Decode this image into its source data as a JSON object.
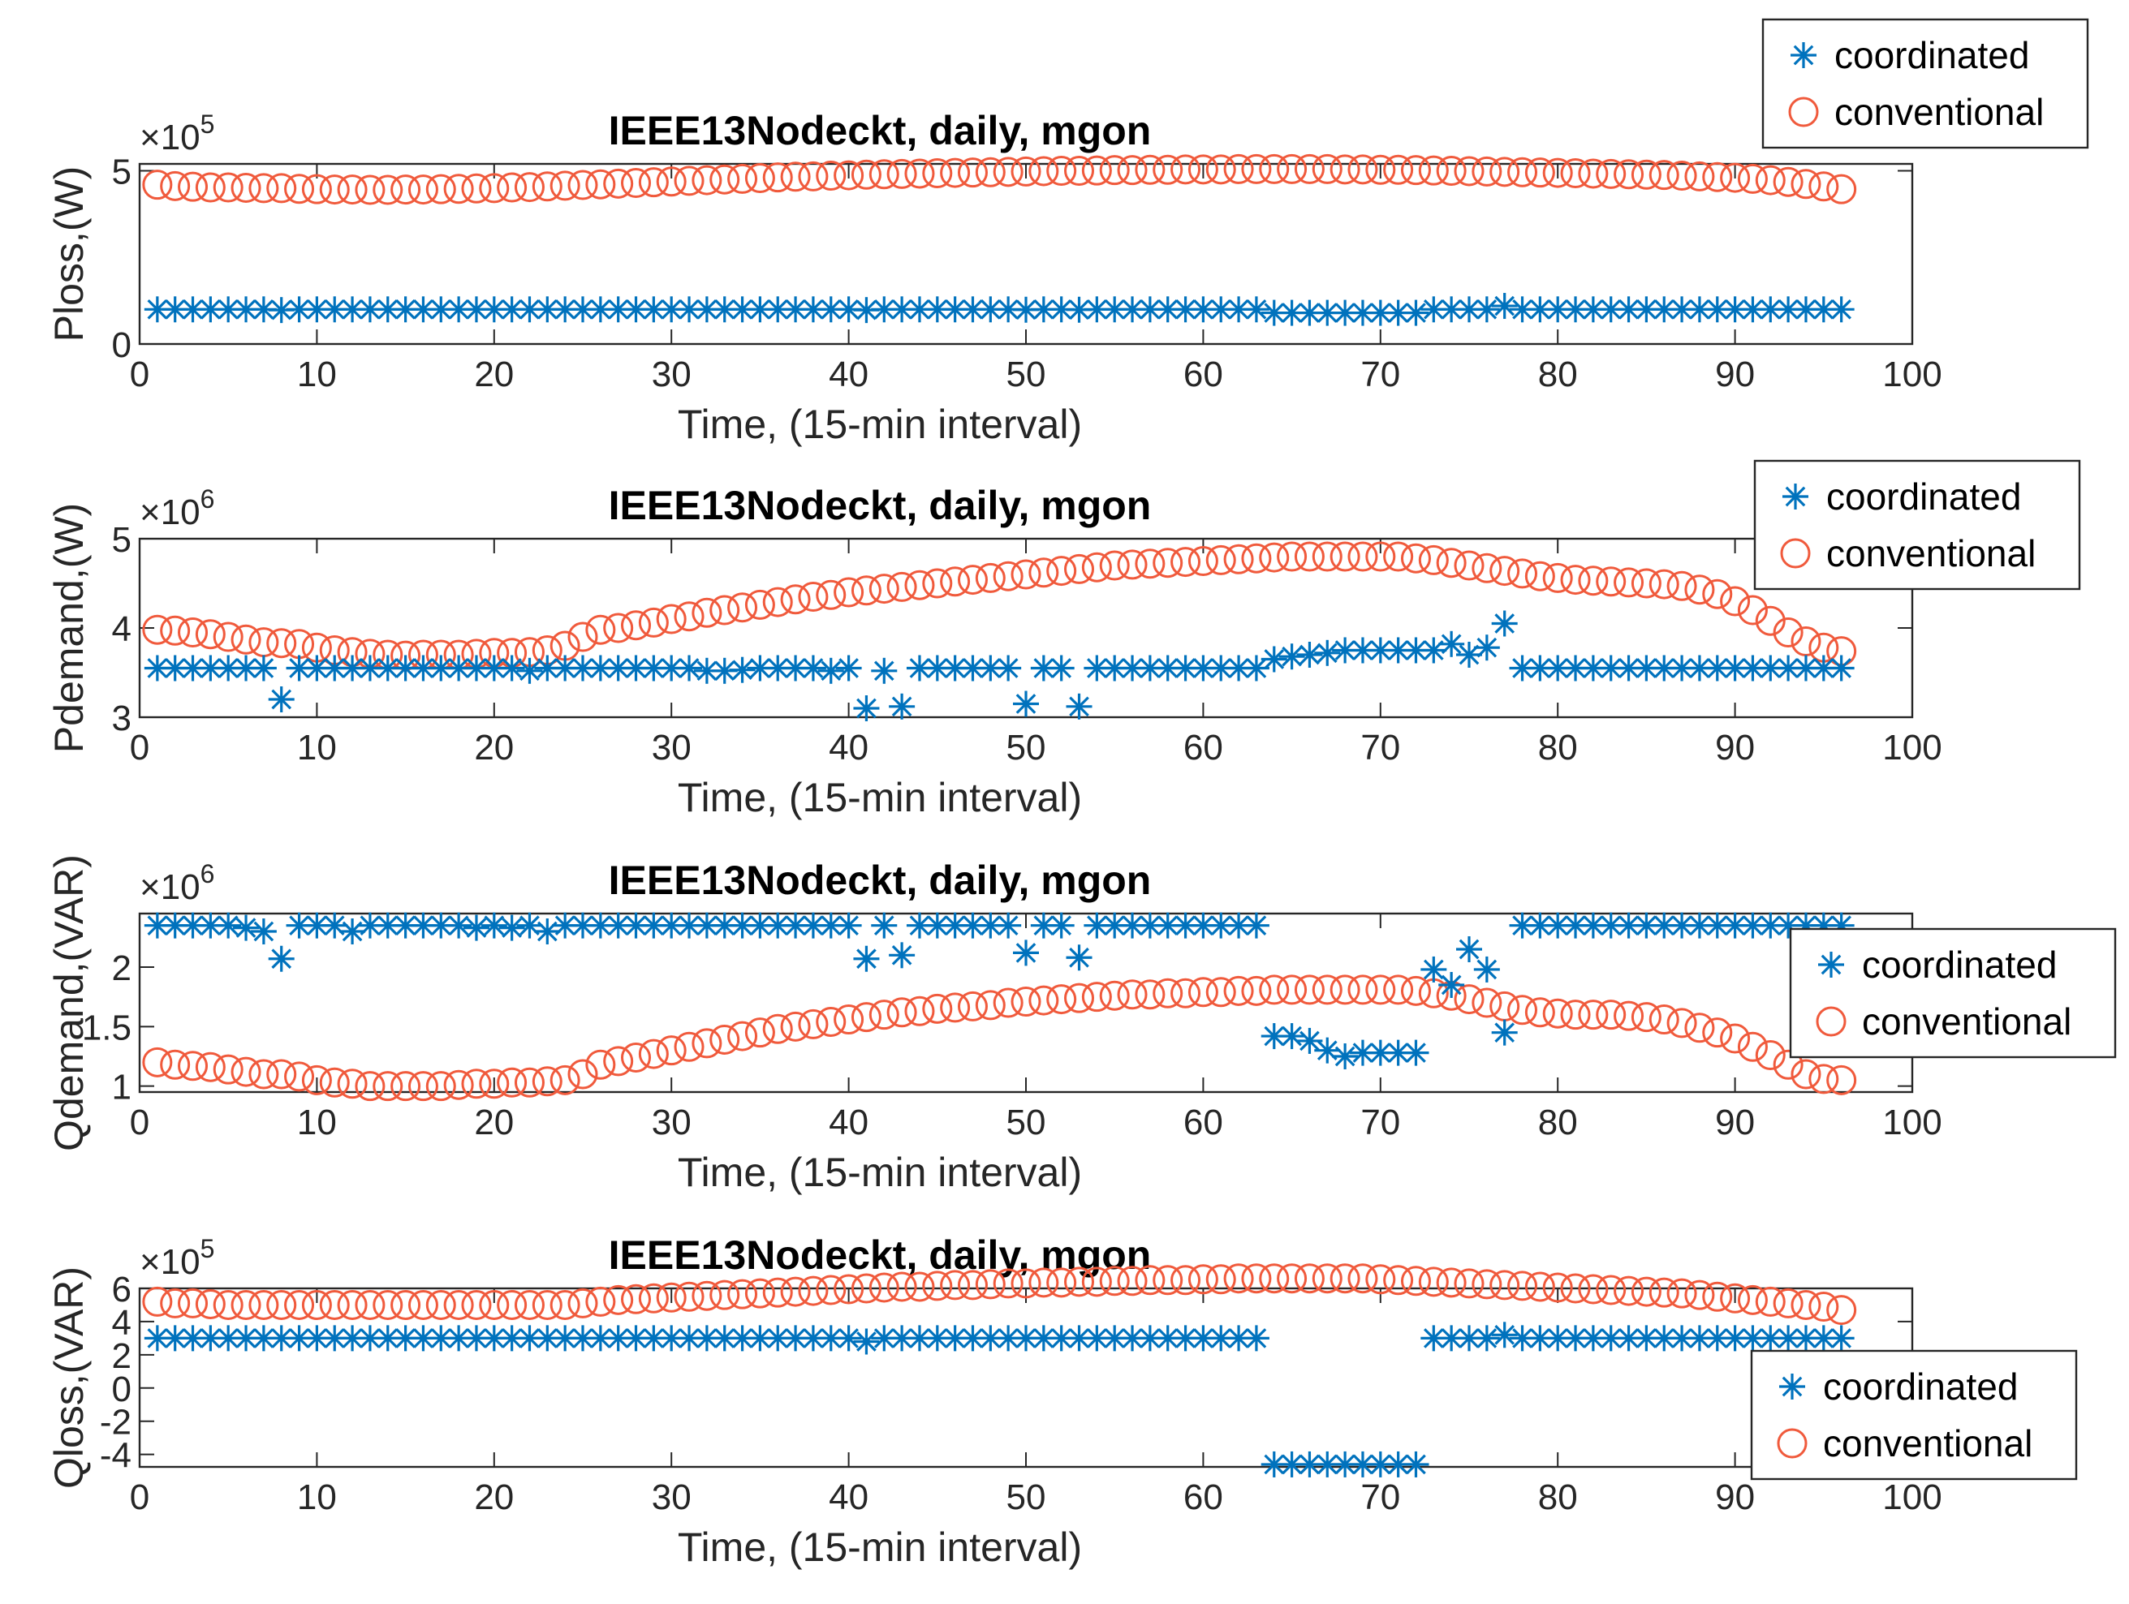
{
  "colors": {
    "coordinated": "#0072BD",
    "conventional": "#F05A3C",
    "axis": "#262626"
  },
  "chart_data": [
    {
      "type": "scatter",
      "title": "IEEE13Nodeckt, daily, mgon",
      "xlabel": "Time, (15-min interval)",
      "ylabel": "Ploss,(W)",
      "multiplier_base": "×10",
      "multiplier_exp": "5",
      "xlim": [
        0,
        100
      ],
      "ylim": [
        0,
        5.2
      ],
      "xticks": [
        0,
        10,
        20,
        30,
        40,
        50,
        60,
        70,
        80,
        90,
        100
      ],
      "yticks": [
        0,
        5
      ],
      "legend": {
        "position": "top-right",
        "entries": [
          "coordinated",
          "conventional"
        ]
      },
      "series": [
        {
          "name": "coordinated",
          "marker": "asterisk",
          "values": [
            1.0,
            1.0,
            1.0,
            1.0,
            1.0,
            1.0,
            1.0,
            0.98,
            1.0,
            1.0,
            1.0,
            1.0,
            1.0,
            1.0,
            1.0,
            1.0,
            1.0,
            1.0,
            1.0,
            1.0,
            1.0,
            1.0,
            1.0,
            1.0,
            1.0,
            1.0,
            1.0,
            1.0,
            1.0,
            1.0,
            1.0,
            1.0,
            1.0,
            1.0,
            1.0,
            1.0,
            1.0,
            1.0,
            1.0,
            1.0,
            0.98,
            1.0,
            1.0,
            1.0,
            1.0,
            1.0,
            1.0,
            1.0,
            1.0,
            0.99,
            1.0,
            1.0,
            0.99,
            1.0,
            1.0,
            1.0,
            1.0,
            1.0,
            1.0,
            1.0,
            1.0,
            1.0,
            1.0,
            0.9,
            0.9,
            0.9,
            0.9,
            0.9,
            0.9,
            0.9,
            0.9,
            0.9,
            1.0,
            1.0,
            1.0,
            1.0,
            1.1,
            1.0,
            1.0,
            1.0,
            1.0,
            1.0,
            1.0,
            1.0,
            1.0,
            1.0,
            1.0,
            1.0,
            1.0,
            1.0,
            1.0,
            1.0,
            1.0,
            1.0,
            1.0,
            1.0
          ]
        },
        {
          "name": "conventional",
          "marker": "circle",
          "values": [
            4.6,
            4.56,
            4.54,
            4.52,
            4.52,
            4.51,
            4.5,
            4.5,
            4.48,
            4.47,
            4.46,
            4.46,
            4.45,
            4.45,
            4.46,
            4.46,
            4.47,
            4.48,
            4.49,
            4.5,
            4.52,
            4.53,
            4.55,
            4.57,
            4.59,
            4.61,
            4.63,
            4.65,
            4.67,
            4.69,
            4.71,
            4.73,
            4.75,
            4.77,
            4.79,
            4.81,
            4.83,
            4.84,
            4.86,
            4.87,
            4.89,
            4.9,
            4.91,
            4.92,
            4.93,
            4.94,
            4.95,
            4.96,
            4.97,
            4.98,
            4.99,
            5.0,
            5.0,
            5.01,
            5.02,
            5.02,
            5.03,
            5.03,
            5.04,
            5.04,
            5.04,
            5.05,
            5.05,
            5.05,
            5.05,
            5.05,
            5.05,
            5.04,
            5.04,
            5.03,
            5.03,
            5.02,
            5.01,
            5.0,
            4.99,
            4.98,
            4.97,
            4.96,
            4.95,
            4.94,
            4.93,
            4.92,
            4.91,
            4.9,
            4.89,
            4.88,
            4.86,
            4.84,
            4.82,
            4.8,
            4.77,
            4.73,
            4.68,
            4.62,
            4.55,
            4.47
          ]
        }
      ]
    },
    {
      "type": "scatter",
      "title": "IEEE13Nodeckt, daily, mgon",
      "xlabel": "Time, (15-min interval)",
      "ylabel": "Pdemand,(W)",
      "multiplier_base": "×10",
      "multiplier_exp": "6",
      "xlim": [
        0,
        100
      ],
      "ylim": [
        3,
        5
      ],
      "xticks": [
        0,
        10,
        20,
        30,
        40,
        50,
        60,
        70,
        80,
        90,
        100
      ],
      "yticks": [
        3,
        4,
        5
      ],
      "legend": {
        "position": "top-right",
        "entries": [
          "coordinated",
          "conventional"
        ]
      },
      "series": [
        {
          "name": "coordinated",
          "marker": "asterisk",
          "values": [
            3.55,
            3.55,
            3.55,
            3.55,
            3.55,
            3.55,
            3.55,
            3.2,
            3.55,
            3.55,
            3.55,
            3.55,
            3.55,
            3.55,
            3.55,
            3.55,
            3.55,
            3.55,
            3.55,
            3.55,
            3.55,
            3.52,
            3.55,
            3.55,
            3.55,
            3.55,
            3.55,
            3.55,
            3.55,
            3.55,
            3.55,
            3.52,
            3.52,
            3.53,
            3.55,
            3.55,
            3.55,
            3.55,
            3.52,
            3.55,
            3.1,
            3.52,
            3.12,
            3.55,
            3.55,
            3.55,
            3.55,
            3.55,
            3.55,
            3.15,
            3.55,
            3.55,
            3.12,
            3.55,
            3.55,
            3.55,
            3.55,
            3.55,
            3.55,
            3.55,
            3.55,
            3.55,
            3.55,
            3.65,
            3.68,
            3.7,
            3.72,
            3.75,
            3.75,
            3.75,
            3.75,
            3.75,
            3.75,
            3.82,
            3.7,
            3.78,
            4.05,
            3.55,
            3.55,
            3.55,
            3.55,
            3.55,
            3.55,
            3.55,
            3.55,
            3.55,
            3.55,
            3.55,
            3.55,
            3.55,
            3.55,
            3.55,
            3.55,
            3.55,
            3.55,
            3.55
          ]
        },
        {
          "name": "conventional",
          "marker": "circle",
          "values": [
            3.98,
            3.97,
            3.95,
            3.93,
            3.9,
            3.87,
            3.84,
            3.83,
            3.82,
            3.78,
            3.75,
            3.73,
            3.71,
            3.7,
            3.69,
            3.7,
            3.7,
            3.7,
            3.71,
            3.72,
            3.72,
            3.73,
            3.75,
            3.8,
            3.9,
            3.98,
            4.0,
            4.03,
            4.06,
            4.1,
            4.13,
            4.17,
            4.2,
            4.23,
            4.26,
            4.29,
            4.32,
            4.35,
            4.37,
            4.4,
            4.42,
            4.44,
            4.46,
            4.48,
            4.5,
            4.52,
            4.54,
            4.56,
            4.58,
            4.6,
            4.62,
            4.64,
            4.66,
            4.68,
            4.7,
            4.71,
            4.72,
            4.73,
            4.74,
            4.75,
            4.76,
            4.77,
            4.78,
            4.79,
            4.8,
            4.8,
            4.8,
            4.8,
            4.8,
            4.8,
            4.8,
            4.78,
            4.76,
            4.73,
            4.7,
            4.67,
            4.64,
            4.61,
            4.58,
            4.56,
            4.54,
            4.53,
            4.52,
            4.51,
            4.5,
            4.49,
            4.47,
            4.43,
            4.38,
            4.3,
            4.2,
            4.08,
            3.95,
            3.85,
            3.78,
            3.74
          ]
        }
      ]
    },
    {
      "type": "scatter",
      "title": "IEEE13Nodeckt, daily, mgon",
      "xlabel": "Time, (15-min interval)",
      "ylabel": "Qdemand,(VAR)",
      "multiplier_base": "×10",
      "multiplier_exp": "6",
      "xlim": [
        0,
        100
      ],
      "ylim": [
        0.95,
        2.45
      ],
      "xticks": [
        0,
        10,
        20,
        30,
        40,
        50,
        60,
        70,
        80,
        90,
        100
      ],
      "yticks": [
        1,
        1.5,
        2
      ],
      "legend": {
        "position": "right",
        "entries": [
          "coordinated",
          "conventional"
        ]
      },
      "series": [
        {
          "name": "coordinated",
          "marker": "asterisk",
          "values": [
            2.35,
            2.35,
            2.35,
            2.35,
            2.35,
            2.33,
            2.3,
            2.07,
            2.35,
            2.35,
            2.35,
            2.3,
            2.35,
            2.35,
            2.35,
            2.35,
            2.35,
            2.35,
            2.33,
            2.35,
            2.33,
            2.35,
            2.3,
            2.35,
            2.35,
            2.35,
            2.35,
            2.35,
            2.35,
            2.35,
            2.35,
            2.35,
            2.35,
            2.35,
            2.35,
            2.35,
            2.35,
            2.35,
            2.35,
            2.35,
            2.07,
            2.35,
            2.1,
            2.35,
            2.35,
            2.35,
            2.35,
            2.35,
            2.35,
            2.12,
            2.35,
            2.35,
            2.08,
            2.35,
            2.35,
            2.35,
            2.35,
            2.35,
            2.35,
            2.35,
            2.35,
            2.35,
            2.35,
            1.42,
            1.42,
            1.38,
            1.3,
            1.25,
            1.28,
            1.28,
            1.28,
            1.28,
            1.98,
            1.85,
            2.15,
            1.98,
            1.45,
            2.35,
            2.35,
            2.35,
            2.35,
            2.35,
            2.35,
            2.35,
            2.35,
            2.35,
            2.35,
            2.35,
            2.35,
            2.35,
            2.35,
            2.35,
            2.35,
            2.35,
            2.35,
            2.35
          ]
        },
        {
          "name": "conventional",
          "marker": "circle",
          "values": [
            1.2,
            1.18,
            1.17,
            1.16,
            1.14,
            1.12,
            1.1,
            1.1,
            1.08,
            1.05,
            1.03,
            1.02,
            1.0,
            1.0,
            1.0,
            1.0,
            1.0,
            1.01,
            1.02,
            1.02,
            1.03,
            1.03,
            1.04,
            1.05,
            1.1,
            1.18,
            1.21,
            1.24,
            1.27,
            1.3,
            1.33,
            1.36,
            1.39,
            1.42,
            1.45,
            1.48,
            1.5,
            1.52,
            1.54,
            1.56,
            1.58,
            1.6,
            1.62,
            1.63,
            1.65,
            1.66,
            1.67,
            1.68,
            1.7,
            1.71,
            1.72,
            1.73,
            1.74,
            1.75,
            1.76,
            1.77,
            1.77,
            1.78,
            1.78,
            1.79,
            1.79,
            1.8,
            1.8,
            1.81,
            1.81,
            1.81,
            1.81,
            1.81,
            1.81,
            1.81,
            1.81,
            1.8,
            1.78,
            1.76,
            1.73,
            1.7,
            1.67,
            1.64,
            1.62,
            1.61,
            1.6,
            1.6,
            1.6,
            1.59,
            1.58,
            1.56,
            1.53,
            1.49,
            1.45,
            1.4,
            1.33,
            1.26,
            1.18,
            1.1,
            1.06,
            1.05
          ]
        }
      ]
    },
    {
      "type": "scatter",
      "title": "IEEE13Nodeckt, daily, mgon",
      "xlabel": "Time, (15-min interval)",
      "ylabel": "Qloss,(VAR)",
      "multiplier_base": "×10",
      "multiplier_exp": "5",
      "xlim": [
        0,
        100
      ],
      "ylim": [
        -4.75,
        6
      ],
      "xticks": [
        0,
        10,
        20,
        30,
        40,
        50,
        60,
        70,
        80,
        90,
        100
      ],
      "yticks": [
        -4,
        -2,
        0,
        2,
        4,
        6
      ],
      "legend": {
        "position": "bottom-right",
        "entries": [
          "coordinated",
          "conventional"
        ]
      },
      "series": [
        {
          "name": "coordinated",
          "marker": "asterisk",
          "values": [
            3.0,
            3.0,
            3.0,
            3.0,
            3.0,
            3.0,
            3.0,
            3.0,
            3.0,
            3.0,
            3.0,
            3.0,
            3.0,
            3.0,
            3.0,
            3.0,
            3.0,
            3.0,
            3.0,
            3.0,
            3.0,
            3.0,
            3.0,
            3.0,
            3.0,
            3.0,
            3.0,
            3.0,
            3.0,
            3.0,
            3.0,
            3.0,
            3.0,
            3.0,
            3.0,
            3.0,
            3.0,
            3.0,
            3.0,
            3.0,
            2.8,
            3.0,
            3.0,
            3.0,
            3.0,
            3.0,
            3.0,
            3.0,
            3.0,
            3.0,
            3.0,
            3.0,
            3.0,
            3.0,
            3.0,
            3.0,
            3.0,
            3.0,
            3.0,
            3.0,
            3.0,
            3.0,
            3.0,
            -4.6,
            -4.6,
            -4.6,
            -4.6,
            -4.6,
            -4.6,
            -4.6,
            -4.6,
            -4.6,
            3.0,
            3.0,
            3.0,
            3.0,
            3.2,
            3.0,
            3.0,
            3.0,
            3.0,
            3.0,
            3.0,
            3.0,
            3.0,
            3.0,
            3.0,
            3.0,
            3.0,
            3.0,
            3.0,
            3.0,
            3.0,
            3.0,
            3.0,
            3.0
          ]
        },
        {
          "name": "conventional",
          "marker": "circle",
          "values": [
            5.2,
            5.1,
            5.1,
            5.05,
            5.0,
            5.0,
            5.0,
            5.0,
            5.0,
            5.0,
            5.0,
            5.0,
            5.0,
            5.0,
            5.0,
            5.0,
            5.0,
            5.0,
            5.0,
            5.0,
            5.0,
            5.0,
            5.0,
            5.0,
            5.1,
            5.2,
            5.3,
            5.35,
            5.4,
            5.45,
            5.5,
            5.55,
            5.6,
            5.65,
            5.7,
            5.75,
            5.8,
            5.85,
            5.9,
            5.95,
            6.0,
            6.05,
            6.1,
            6.1,
            6.15,
            6.2,
            6.2,
            6.25,
            6.3,
            6.3,
            6.35,
            6.35,
            6.4,
            6.4,
            6.45,
            6.45,
            6.5,
            6.5,
            6.5,
            6.55,
            6.55,
            6.6,
            6.6,
            6.6,
            6.6,
            6.6,
            6.6,
            6.6,
            6.6,
            6.55,
            6.5,
            6.45,
            6.4,
            6.35,
            6.3,
            6.25,
            6.2,
            6.15,
            6.1,
            6.05,
            6.0,
            5.95,
            5.9,
            5.85,
            5.8,
            5.75,
            5.7,
            5.6,
            5.5,
            5.4,
            5.3,
            5.2,
            5.1,
            5.0,
            4.9,
            4.7
          ]
        }
      ]
    }
  ]
}
